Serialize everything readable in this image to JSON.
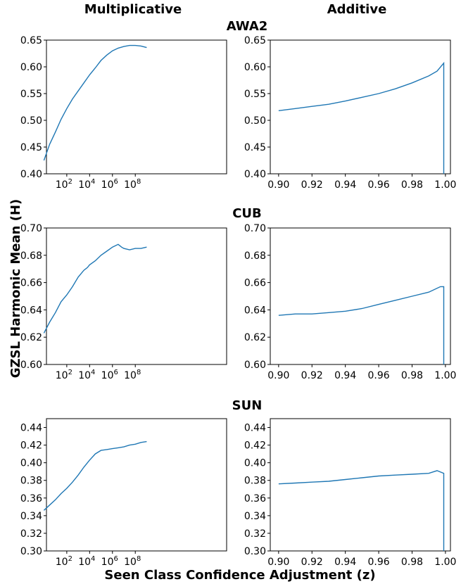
{
  "figure": {
    "col_titles": [
      "Multiplicative",
      "Additive"
    ],
    "row_titles": [
      "AWA2",
      "CUB",
      "SUN"
    ],
    "ylabel": "GZSL Harmonic Mean (H)",
    "xlabel": "Seen Class Confidence Adjustment (z)",
    "line_color": "#1f77b4"
  },
  "chart_data": [
    {
      "type": "line",
      "dataset": "AWA2",
      "panel": "Multiplicative",
      "xscale": "log",
      "xlim": [
        0.22,
        16
      ],
      "ylim": [
        0.4,
        0.65
      ],
      "xticks": [
        2,
        4,
        6,
        8
      ],
      "xtick_labels": [
        "10",
        "10",
        "10",
        "10"
      ],
      "xtick_exponents": [
        "2",
        "4",
        "6",
        "8"
      ],
      "yticks": [
        0.4,
        0.45,
        0.5,
        0.55,
        0.6,
        0.65
      ],
      "ytick_labels": [
        "0.40",
        "0.45",
        "0.50",
        "0.55",
        "0.60",
        "0.65"
      ],
      "x": [
        0,
        0.5,
        1,
        1.5,
        2,
        2.5,
        3,
        3.5,
        4,
        4.5,
        5,
        5.5,
        6,
        6.5,
        7,
        7.5,
        8,
        8.5,
        9
      ],
      "y": [
        0.425,
        0.455,
        0.478,
        0.502,
        0.522,
        0.54,
        0.555,
        0.57,
        0.585,
        0.598,
        0.612,
        0.622,
        0.63,
        0.635,
        0.638,
        0.64,
        0.64,
        0.639,
        0.636
      ]
    },
    {
      "type": "line",
      "dataset": "AWA2",
      "panel": "Additive",
      "xscale": "linear",
      "xlim": [
        0.895,
        1.003
      ],
      "ylim": [
        0.4,
        0.65
      ],
      "xticks": [
        0.9,
        0.92,
        0.94,
        0.96,
        0.98,
        1.0
      ],
      "xtick_labels": [
        "0.90",
        "0.92",
        "0.94",
        "0.96",
        "0.98",
        "1.00"
      ],
      "yticks": [
        0.4,
        0.45,
        0.5,
        0.55,
        0.6,
        0.65
      ],
      "ytick_labels": [
        "0.40",
        "0.45",
        "0.50",
        "0.55",
        "0.60",
        "0.65"
      ],
      "x": [
        0.9,
        0.91,
        0.92,
        0.93,
        0.94,
        0.95,
        0.96,
        0.97,
        0.98,
        0.99,
        0.995,
        0.999,
        0.999
      ],
      "y": [
        0.518,
        0.522,
        0.526,
        0.53,
        0.536,
        0.543,
        0.55,
        0.559,
        0.57,
        0.583,
        0.592,
        0.607,
        0.4
      ]
    },
    {
      "type": "line",
      "dataset": "CUB",
      "panel": "Multiplicative",
      "xscale": "log",
      "xlim": [
        0.22,
        16
      ],
      "ylim": [
        0.6,
        0.7
      ],
      "xticks": [
        2,
        4,
        6,
        8
      ],
      "xtick_labels": [
        "10",
        "10",
        "10",
        "10"
      ],
      "xtick_exponents": [
        "2",
        "4",
        "6",
        "8"
      ],
      "yticks": [
        0.6,
        0.62,
        0.64,
        0.66,
        0.68,
        0.7
      ],
      "ytick_labels": [
        "0.60",
        "0.62",
        "0.64",
        "0.66",
        "0.68",
        "0.70"
      ],
      "x": [
        0,
        0.5,
        1,
        1.5,
        2,
        2.5,
        3,
        3.5,
        3.8,
        4,
        4.5,
        5,
        5.5,
        6,
        6.5,
        6.8,
        7,
        7.5,
        8,
        8.5,
        9
      ],
      "y": [
        0.623,
        0.631,
        0.638,
        0.646,
        0.651,
        0.657,
        0.664,
        0.669,
        0.671,
        0.673,
        0.676,
        0.68,
        0.683,
        0.686,
        0.688,
        0.686,
        0.685,
        0.684,
        0.685,
        0.685,
        0.686
      ]
    },
    {
      "type": "line",
      "dataset": "CUB",
      "panel": "Additive",
      "xscale": "linear",
      "xlim": [
        0.895,
        1.003
      ],
      "ylim": [
        0.6,
        0.7
      ],
      "xticks": [
        0.9,
        0.92,
        0.94,
        0.96,
        0.98,
        1.0
      ],
      "xtick_labels": [
        "0.90",
        "0.92",
        "0.94",
        "0.96",
        "0.98",
        "1.00"
      ],
      "yticks": [
        0.6,
        0.62,
        0.64,
        0.66,
        0.68,
        0.7
      ],
      "ytick_labels": [
        "0.60",
        "0.62",
        "0.64",
        "0.66",
        "0.68",
        "0.70"
      ],
      "x": [
        0.9,
        0.91,
        0.92,
        0.93,
        0.94,
        0.95,
        0.96,
        0.97,
        0.98,
        0.99,
        0.997,
        0.999,
        0.999
      ],
      "y": [
        0.636,
        0.637,
        0.637,
        0.638,
        0.639,
        0.641,
        0.644,
        0.647,
        0.65,
        0.653,
        0.657,
        0.657,
        0.6
      ]
    },
    {
      "type": "line",
      "dataset": "SUN",
      "panel": "Multiplicative",
      "xscale": "log",
      "xlim": [
        0.22,
        16
      ],
      "ylim": [
        0.3,
        0.45
      ],
      "xticks": [
        2,
        4,
        6,
        8
      ],
      "xtick_labels": [
        "10",
        "10",
        "10",
        "10"
      ],
      "xtick_exponents": [
        "2",
        "4",
        "6",
        "8"
      ],
      "yticks": [
        0.3,
        0.32,
        0.34,
        0.36,
        0.38,
        0.4,
        0.42,
        0.44
      ],
      "ytick_labels": [
        "0.30",
        "0.32",
        "0.34",
        "0.36",
        "0.38",
        "0.40",
        "0.42",
        "0.44"
      ],
      "x": [
        0,
        0.5,
        1,
        1.5,
        2,
        2.5,
        3,
        3.5,
        4,
        4.5,
        5,
        5.5,
        6,
        6.5,
        7,
        7.5,
        8,
        8.5,
        9
      ],
      "y": [
        0.346,
        0.352,
        0.358,
        0.365,
        0.371,
        0.378,
        0.386,
        0.395,
        0.403,
        0.41,
        0.414,
        0.415,
        0.416,
        0.417,
        0.418,
        0.42,
        0.421,
        0.423,
        0.424
      ]
    },
    {
      "type": "line",
      "dataset": "SUN",
      "panel": "Additive",
      "xscale": "linear",
      "xlim": [
        0.895,
        1.003
      ],
      "ylim": [
        0.3,
        0.45
      ],
      "xticks": [
        0.9,
        0.92,
        0.94,
        0.96,
        0.98,
        1.0
      ],
      "xtick_labels": [
        "0.90",
        "0.92",
        "0.94",
        "0.96",
        "0.98",
        "1.00"
      ],
      "yticks": [
        0.3,
        0.32,
        0.34,
        0.36,
        0.38,
        0.4,
        0.42,
        0.44
      ],
      "ytick_labels": [
        "0.30",
        "0.32",
        "0.34",
        "0.36",
        "0.38",
        "0.40",
        "0.42",
        "0.44"
      ],
      "x": [
        0.9,
        0.91,
        0.92,
        0.93,
        0.94,
        0.95,
        0.96,
        0.97,
        0.98,
        0.99,
        0.995,
        0.999,
        0.999
      ],
      "y": [
        0.376,
        0.377,
        0.378,
        0.379,
        0.381,
        0.383,
        0.385,
        0.386,
        0.387,
        0.388,
        0.391,
        0.388,
        0.3
      ]
    }
  ]
}
